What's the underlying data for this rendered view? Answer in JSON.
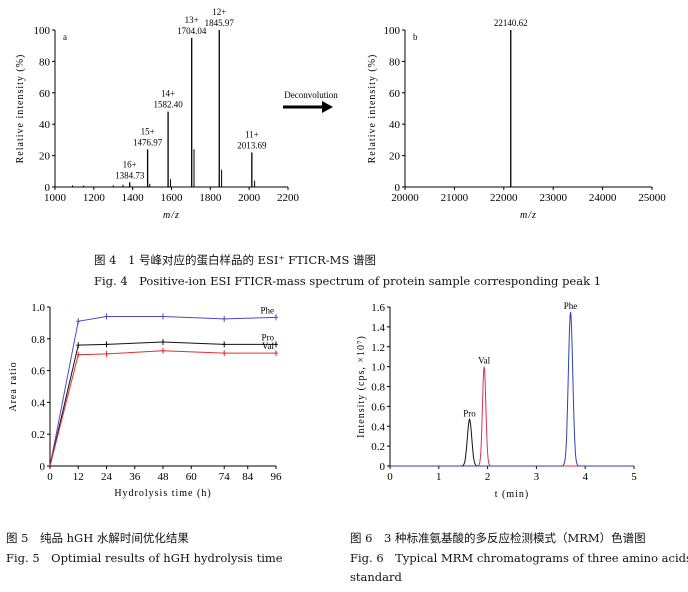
{
  "chart_data": [
    {
      "type": "bar",
      "panel_label": "a",
      "xlabel": "m/z",
      "ylabel": "Relative intensity (%)",
      "xlim": [
        1000,
        2200
      ],
      "ylim": [
        0,
        100
      ],
      "xticks": [
        "1000",
        "1200",
        "1400",
        "1600",
        "1800",
        "2000",
        "2200"
      ],
      "yticks": [
        "0",
        "20",
        "40",
        "60",
        "80",
        "100"
      ],
      "peaks": [
        {
          "x": 1384.73,
          "y": 3,
          "label": [
            "16+",
            "1384.73"
          ]
        },
        {
          "x": 1476.97,
          "y": 24,
          "label": [
            "15+",
            "1476.97"
          ]
        },
        {
          "x": 1582.4,
          "y": 48,
          "label": [
            "14+",
            "1582.40"
          ]
        },
        {
          "x": 1704.04,
          "y": 95,
          "label": [
            "13+",
            "1704.04"
          ]
        },
        {
          "x": 1845.97,
          "y": 100,
          "label": [
            "12+",
            "1845.97"
          ]
        },
        {
          "x": 2013.69,
          "y": 22,
          "label": [
            "11+",
            "2013.69"
          ]
        }
      ],
      "minor_peaks": [
        {
          "x": 1090,
          "y": 1
        },
        {
          "x": 1148,
          "y": 1
        },
        {
          "x": 1300,
          "y": 1
        },
        {
          "x": 1350,
          "y": 1.5
        },
        {
          "x": 1488,
          "y": 2
        },
        {
          "x": 1595,
          "y": 5
        },
        {
          "x": 1716,
          "y": 24
        },
        {
          "x": 1858,
          "y": 11
        },
        {
          "x": 2028,
          "y": 4
        }
      ]
    },
    {
      "type": "bar",
      "panel_label": "b",
      "xlabel": "m/z",
      "ylabel": "Relative intensity (%)",
      "xlim": [
        20000,
        25000
      ],
      "ylim": [
        0,
        100
      ],
      "xticks": [
        "20000",
        "21000",
        "22000",
        "23000",
        "24000",
        "25000"
      ],
      "yticks": [
        "0",
        "20",
        "40",
        "60",
        "80",
        "100"
      ],
      "peaks": [
        {
          "x": 22140.62,
          "y": 100,
          "label": [
            "22140.62"
          ]
        }
      ]
    },
    {
      "type": "line",
      "xlabel": "Hydrolysis time (h)",
      "ylabel": "Area ratio",
      "xlim": [
        0,
        96
      ],
      "ylim": [
        0,
        1.0
      ],
      "xticks": [
        "0",
        "12",
        "24",
        "36",
        "48",
        "60",
        "74",
        "84",
        "96"
      ],
      "yticks": [
        "0",
        "0.2",
        "0.4",
        "0.6",
        "0.8",
        "1.0"
      ],
      "x": [
        0,
        12,
        24,
        48,
        74,
        96
      ],
      "series": [
        {
          "name": "Phe",
          "color": "#4a4ac8",
          "values": [
            0,
            0.91,
            0.94,
            0.94,
            0.925,
            0.935
          ]
        },
        {
          "name": "Pro",
          "color": "#111111",
          "values": [
            0,
            0.76,
            0.765,
            0.78,
            0.765,
            0.765
          ]
        },
        {
          "name": "Val",
          "color": "#e03030",
          "values": [
            0,
            0.7,
            0.705,
            0.725,
            0.71,
            0.71
          ]
        }
      ]
    },
    {
      "type": "line",
      "xlabel": "t (min)",
      "ylabel": "Intensity (cps, ×10⁷)",
      "xlim": [
        0,
        5
      ],
      "ylim": [
        0,
        1.6
      ],
      "xticks": [
        "0",
        "1",
        "2",
        "3",
        "4",
        "5"
      ],
      "yticks": [
        "0",
        "0.2",
        "0.4",
        "0.6",
        "0.8",
        "1.0",
        "1.2",
        "1.4",
        "1.6"
      ],
      "series": [
        {
          "name": "Pro",
          "color": "#111111",
          "center": 1.63,
          "height": 0.47,
          "width": 0.045
        },
        {
          "name": "Val",
          "color": "#e03050",
          "center": 1.93,
          "height": 1.0,
          "width": 0.035
        },
        {
          "name": "Phe",
          "color": "#3040b0",
          "center": 3.7,
          "height": 1.55,
          "width": 0.045
        }
      ]
    }
  ],
  "arrow_label": "Deconvolution",
  "captions": {
    "fig4_cn": "图 4　1 号峰对应的蛋白样品的 ESI⁺ FTICR-MS 谱图",
    "fig4_en": "Fig. 4　Positive-ion ESI FTICR-mass spectrum of protein sample corresponding peak 1",
    "fig5_cn": "图 5　纯品 hGH 水解时间优化结果",
    "fig5_en": "Fig. 5　Optimial results of hGH hydrolysis time",
    "fig6_cn": "图 6　3 种标准氨基酸的多反应检测模式（MRM）色谱图",
    "fig6_en": "Fig. 6　Typical MRM chromatograms of three amino acids",
    "fig6_en2": "standard"
  }
}
